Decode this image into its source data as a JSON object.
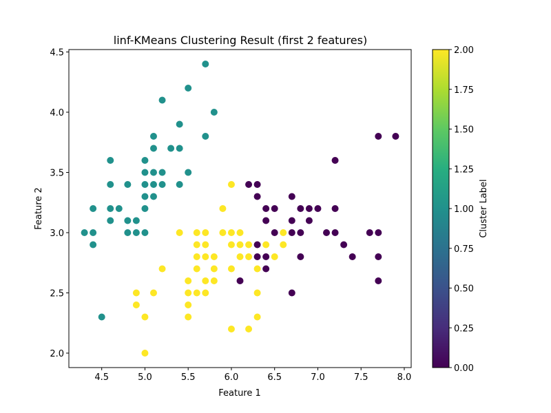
{
  "chart_data": {
    "type": "scatter",
    "title": "linf-KMeans Clustering Result (first 2 features)",
    "xlabel": "Feature 1",
    "ylabel": "Feature 2",
    "xlim": [
      4.12,
      8.08
    ],
    "ylim": [
      1.88,
      4.52
    ],
    "xticks": [
      4.5,
      5.0,
      5.5,
      6.0,
      6.5,
      7.0,
      7.5,
      8.0
    ],
    "xtick_labels": [
      "4.5",
      "5.0",
      "5.5",
      "6.0",
      "6.5",
      "7.0",
      "7.5",
      "8.0"
    ],
    "yticks": [
      2.0,
      2.5,
      3.0,
      3.5,
      4.0,
      4.5
    ],
    "ytick_labels": [
      "2.0",
      "2.5",
      "3.0",
      "3.5",
      "4.0",
      "4.5"
    ],
    "grid": false,
    "colormap": "viridis",
    "colorbar": {
      "label": "Cluster Label",
      "range": [
        0.0,
        2.0
      ],
      "ticks": [
        0.0,
        0.25,
        0.5,
        0.75,
        1.0,
        1.25,
        1.5,
        1.75,
        2.0
      ],
      "tick_labels": [
        "0.00",
        "0.25",
        "0.50",
        "0.75",
        "1.00",
        "1.25",
        "1.50",
        "1.75",
        "2.00"
      ]
    },
    "colors": {
      "0": "#440154",
      "1": "#21918c",
      "2": "#fde725"
    },
    "points": [
      [
        4.3,
        3.0,
        1
      ],
      [
        4.4,
        3.2,
        1
      ],
      [
        4.4,
        3.0,
        1
      ],
      [
        4.4,
        2.9,
        1
      ],
      [
        4.5,
        2.3,
        1
      ],
      [
        4.6,
        3.6,
        1
      ],
      [
        4.6,
        3.4,
        1
      ],
      [
        4.6,
        3.2,
        1
      ],
      [
        4.6,
        3.1,
        1
      ],
      [
        4.7,
        3.2,
        1
      ],
      [
        4.8,
        3.4,
        1
      ],
      [
        4.8,
        3.1,
        1
      ],
      [
        4.8,
        3.0,
        1
      ],
      [
        4.9,
        3.1,
        1
      ],
      [
        4.9,
        3.0,
        1
      ],
      [
        5.0,
        3.6,
        1
      ],
      [
        5.0,
        3.5,
        1
      ],
      [
        5.0,
        3.4,
        1
      ],
      [
        5.0,
        3.3,
        1
      ],
      [
        5.0,
        3.2,
        1
      ],
      [
        5.0,
        3.0,
        1
      ],
      [
        5.1,
        3.8,
        1
      ],
      [
        5.1,
        3.7,
        1
      ],
      [
        5.1,
        3.5,
        1
      ],
      [
        5.1,
        3.4,
        1
      ],
      [
        5.1,
        3.3,
        1
      ],
      [
        5.2,
        4.1,
        1
      ],
      [
        5.2,
        3.5,
        1
      ],
      [
        5.2,
        3.4,
        1
      ],
      [
        5.3,
        3.7,
        1
      ],
      [
        5.4,
        3.9,
        1
      ],
      [
        5.4,
        3.7,
        1
      ],
      [
        5.4,
        3.4,
        1
      ],
      [
        5.5,
        4.2,
        1
      ],
      [
        5.5,
        3.5,
        1
      ],
      [
        5.7,
        4.4,
        1
      ],
      [
        5.7,
        3.8,
        1
      ],
      [
        5.8,
        4.0,
        1
      ],
      [
        4.9,
        2.5,
        2
      ],
      [
        4.9,
        2.4,
        2
      ],
      [
        5.0,
        2.3,
        2
      ],
      [
        5.0,
        2.0,
        2
      ],
      [
        5.1,
        2.5,
        2
      ],
      [
        5.2,
        2.7,
        2
      ],
      [
        5.4,
        3.0,
        2
      ],
      [
        5.5,
        2.6,
        2
      ],
      [
        5.5,
        2.5,
        2
      ],
      [
        5.5,
        2.4,
        2
      ],
      [
        5.5,
        2.3,
        2
      ],
      [
        5.6,
        3.0,
        2
      ],
      [
        5.6,
        2.9,
        2
      ],
      [
        5.6,
        2.8,
        2
      ],
      [
        5.6,
        2.7,
        2
      ],
      [
        5.6,
        2.5,
        2
      ],
      [
        5.7,
        3.0,
        2
      ],
      [
        5.7,
        2.9,
        2
      ],
      [
        5.7,
        2.8,
        2
      ],
      [
        5.7,
        2.6,
        2
      ],
      [
        5.7,
        2.5,
        2
      ],
      [
        5.8,
        2.8,
        2
      ],
      [
        5.8,
        2.7,
        2
      ],
      [
        5.8,
        2.6,
        2
      ],
      [
        5.9,
        3.2,
        2
      ],
      [
        5.9,
        3.0,
        2
      ],
      [
        6.0,
        3.4,
        2
      ],
      [
        6.0,
        3.0,
        2
      ],
      [
        6.0,
        2.9,
        2
      ],
      [
        6.0,
        2.7,
        2
      ],
      [
        6.0,
        2.2,
        2
      ],
      [
        6.1,
        3.0,
        2
      ],
      [
        6.1,
        2.9,
        2
      ],
      [
        6.1,
        2.8,
        2
      ],
      [
        6.2,
        2.9,
        2
      ],
      [
        6.2,
        2.8,
        2
      ],
      [
        6.2,
        2.2,
        2
      ],
      [
        6.3,
        2.7,
        2
      ],
      [
        6.3,
        2.5,
        2
      ],
      [
        6.3,
        2.3,
        2
      ],
      [
        6.4,
        2.9,
        2
      ],
      [
        6.5,
        2.8,
        2
      ],
      [
        6.6,
        3.0,
        2
      ],
      [
        6.6,
        2.9,
        2
      ],
      [
        6.1,
        2.6,
        0
      ],
      [
        6.2,
        3.4,
        0
      ],
      [
        6.3,
        3.4,
        0
      ],
      [
        6.3,
        3.3,
        0
      ],
      [
        6.3,
        2.9,
        0
      ],
      [
        6.3,
        2.8,
        0
      ],
      [
        6.4,
        3.2,
        0
      ],
      [
        6.4,
        3.1,
        0
      ],
      [
        6.4,
        2.8,
        0
      ],
      [
        6.4,
        2.7,
        0
      ],
      [
        6.5,
        3.2,
        0
      ],
      [
        6.5,
        3.0,
        0
      ],
      [
        6.7,
        3.3,
        0
      ],
      [
        6.7,
        3.1,
        0
      ],
      [
        6.7,
        3.0,
        0
      ],
      [
        6.7,
        2.5,
        0
      ],
      [
        6.8,
        3.2,
        0
      ],
      [
        6.8,
        3.0,
        0
      ],
      [
        6.8,
        2.8,
        0
      ],
      [
        6.9,
        3.2,
        0
      ],
      [
        6.9,
        3.1,
        0
      ],
      [
        7.0,
        3.2,
        0
      ],
      [
        7.1,
        3.0,
        0
      ],
      [
        7.2,
        3.6,
        0
      ],
      [
        7.2,
        3.2,
        0
      ],
      [
        7.2,
        3.0,
        0
      ],
      [
        7.3,
        2.9,
        0
      ],
      [
        7.4,
        2.8,
        0
      ],
      [
        7.6,
        3.0,
        0
      ],
      [
        7.7,
        3.8,
        0
      ],
      [
        7.7,
        3.0,
        0
      ],
      [
        7.7,
        2.8,
        0
      ],
      [
        7.7,
        2.6,
        0
      ],
      [
        7.9,
        3.8,
        0
      ]
    ]
  }
}
